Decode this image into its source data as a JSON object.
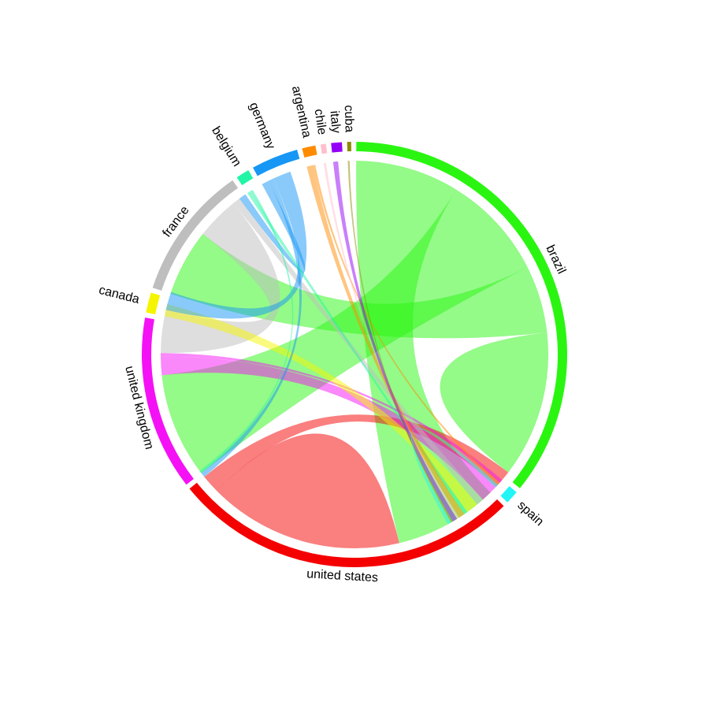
{
  "chart_data": {
    "type": "chord",
    "title": "",
    "sectors": [
      {
        "name": "brazil",
        "color": "#2AF511",
        "value": 35
      },
      {
        "name": "spain",
        "color": "#22F5F5",
        "value": 1
      },
      {
        "name": "united states",
        "color": "#F50000",
        "value": 26
      },
      {
        "name": "united kingdom",
        "color": "#F511F5",
        "value": 13
      },
      {
        "name": "canada",
        "color": "#F5F500",
        "value": 1.5
      },
      {
        "name": "france",
        "color": "#BEBEBE",
        "value": 10
      },
      {
        "name": "belgium",
        "color": "#22F5A6",
        "value": 1
      },
      {
        "name": "germany",
        "color": "#1696F5",
        "value": 3.5
      },
      {
        "name": "argentina",
        "color": "#FF8C00",
        "value": 1
      },
      {
        "name": "chile",
        "color": "#FFC0CB",
        "value": 0.4
      },
      {
        "name": "italy",
        "color": "#9400F5",
        "value": 0.8
      },
      {
        "name": "cuba",
        "color": "#8B8B00",
        "value": 0.3
      }
    ],
    "links": [
      {
        "from": "brazil",
        "to": "united states",
        "value": 8.5,
        "color": "#2AF511"
      },
      {
        "from": "brazil",
        "to": "united kingdom",
        "value": 8.6,
        "color": "#2AF511"
      },
      {
        "from": "brazil",
        "to": "france",
        "value": 5.5,
        "color": "#2AF511"
      },
      {
        "from": "brazil",
        "to": "brazil",
        "value": 6,
        "color": "#2AF511"
      },
      {
        "from": "united states",
        "to": "united states",
        "value": 8,
        "color": "#F50000"
      },
      {
        "from": "united states",
        "to": "brazil",
        "value": 1.5,
        "color": "#F50000"
      },
      {
        "from": "united kingdom",
        "to": "brazil",
        "value": 1.5,
        "color": "#F511F5"
      },
      {
        "from": "united kingdom",
        "to": "spain",
        "value": 0.3,
        "color": "#F511F5"
      },
      {
        "from": "france",
        "to": "united kingdom",
        "value": 3.5,
        "color": "#BEBEBE"
      },
      {
        "from": "france",
        "to": "brazil",
        "value": 0.6,
        "color": "#BEBEBE"
      },
      {
        "from": "canada",
        "to": "brazil",
        "value": 1,
        "color": "#F5F500"
      },
      {
        "from": "germany",
        "to": "france",
        "value": 0.6,
        "color": "#1696F5"
      },
      {
        "from": "germany",
        "to": "united states",
        "value": 0.4,
        "color": "#1696F5"
      },
      {
        "from": "germany",
        "to": "united kingdom",
        "value": 1.5,
        "color": "#1696F5"
      },
      {
        "from": "belgium",
        "to": "brazil",
        "value": 0.3,
        "color": "#22F5A6"
      },
      {
        "from": "belgium",
        "to": "united states",
        "value": 0.2,
        "color": "#22F5A6"
      },
      {
        "from": "argentina",
        "to": "brazil",
        "value": 0.5,
        "color": "#FF8C00"
      },
      {
        "from": "argentina",
        "to": "spain",
        "value": 0.2,
        "color": "#FF8C00"
      },
      {
        "from": "chile",
        "to": "brazil",
        "value": 0.2,
        "color": "#FFC0CB"
      },
      {
        "from": "italy",
        "to": "brazil",
        "value": 0.4,
        "color": "#9400F5"
      },
      {
        "from": "cuba",
        "to": "brazil",
        "value": 0.15,
        "color": "#8B8B00"
      },
      {
        "from": "spain",
        "to": "brazil",
        "value": 0.3,
        "color": "#22F5F5"
      }
    ]
  }
}
